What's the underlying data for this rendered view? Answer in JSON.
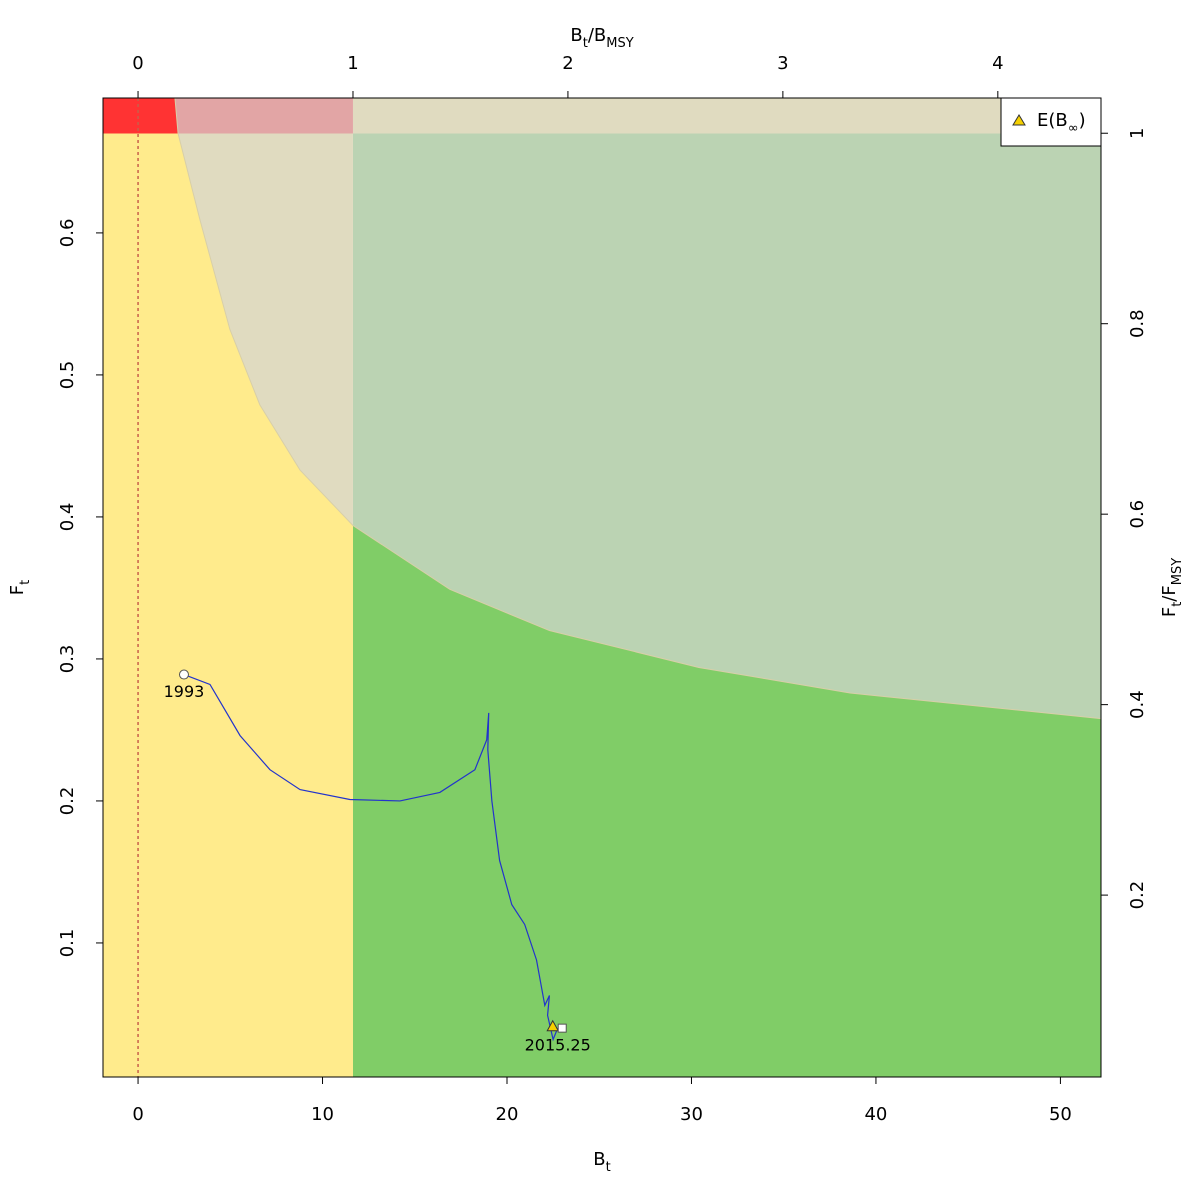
{
  "chart_data": {
    "type": "kobe",
    "x_label": [
      "B",
      "t"
    ],
    "y_label": [
      "F",
      "t"
    ],
    "x2_label": [
      "B",
      "t",
      "/B",
      "MSY"
    ],
    "y2_label": [
      "F",
      "t",
      "/F",
      "MSY"
    ],
    "xlim": [
      -1.9,
      52.2
    ],
    "ylim": [
      0.0056,
      0.695
    ],
    "xticks": [
      0,
      10,
      20,
      30,
      40,
      50
    ],
    "yticks": [
      0.1,
      0.2,
      0.3,
      0.4,
      0.5,
      0.6
    ],
    "x2lim": [
      -0.163,
      4.48
    ],
    "x2ticks": [
      0,
      1,
      2,
      3,
      4
    ],
    "y2lim": [
      0.009,
      1.037
    ],
    "y2ticks": [
      0.2,
      0.4,
      0.6,
      0.8,
      1
    ],
    "Bmsy": 11.65,
    "Fmsy": 0.67,
    "curve": {
      "x": [
        2.0,
        2.17,
        3.36,
        4.98,
        6.6,
        8.78,
        11.65,
        16.9,
        22.3,
        30.4,
        38.6,
        52.2
      ],
      "y": [
        0.695,
        0.67,
        0.609,
        0.532,
        0.479,
        0.433,
        0.394,
        0.349,
        0.32,
        0.294,
        0.276,
        0.258
      ]
    },
    "zone_colors": {
      "low_left": {
        "above": "#e0dbc0",
        "below": "#ffeb8c"
      },
      "low_right": {
        "above": "#bbd3b3",
        "below": "#80cd67"
      },
      "high_left": {
        "above": "#e2a5a5",
        "below": "#ff3333"
      },
      "high_right": {
        "above": "#e0dbc0",
        "below": "#e0dbc0"
      }
    },
    "reference_line_x": 0,
    "reference_line_color": "#c8604a",
    "trajectory": {
      "color": "#2233cc",
      "x": [
        2.49,
        3.9,
        5.53,
        7.15,
        8.78,
        11.48,
        14.2,
        16.36,
        18.26,
        18.9,
        19.01,
        18.96,
        19.18,
        19.6,
        20.26,
        20.96,
        21.6,
        22.05,
        22.3,
        22.2,
        22.5,
        22.75
      ],
      "y": [
        0.289,
        0.282,
        0.246,
        0.222,
        0.208,
        0.201,
        0.2,
        0.206,
        0.222,
        0.243,
        0.262,
        0.236,
        0.2,
        0.158,
        0.127,
        0.113,
        0.088,
        0.056,
        0.063,
        0.049,
        0.032,
        0.04
      ],
      "start_label": "1993",
      "end_label": "2015.25"
    },
    "equilibrium": {
      "x": 22.48,
      "y": 0.041,
      "color": "#f5d000",
      "legend": [
        "E(B",
        "∞",
        ")"
      ]
    },
    "legend_position": "top-right"
  }
}
